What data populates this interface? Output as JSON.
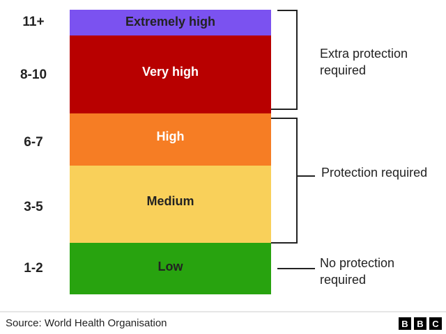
{
  "levels": [
    {
      "range": "11+",
      "label": "Extremely high",
      "color": "#7b52f0",
      "text_color": "#222222"
    },
    {
      "range": "8-10",
      "label": "Very high",
      "color": "#b80000",
      "text_color": "#ffffff"
    },
    {
      "range": "6-7",
      "label": "High",
      "color": "#f67d24",
      "text_color": "#ffffff"
    },
    {
      "range": "3-5",
      "label": "Medium",
      "color": "#f9d05a",
      "text_color": "#222222"
    },
    {
      "range": "1-2",
      "label": "Low",
      "color": "#28a30f",
      "text_color": "#222222"
    }
  ],
  "groups": [
    {
      "text": "Extra protection required"
    },
    {
      "text": "Protection required"
    },
    {
      "text": "No protection required"
    }
  ],
  "footer": {
    "source": "Source: World Health Organisation",
    "logo": [
      "B",
      "B",
      "C"
    ]
  }
}
